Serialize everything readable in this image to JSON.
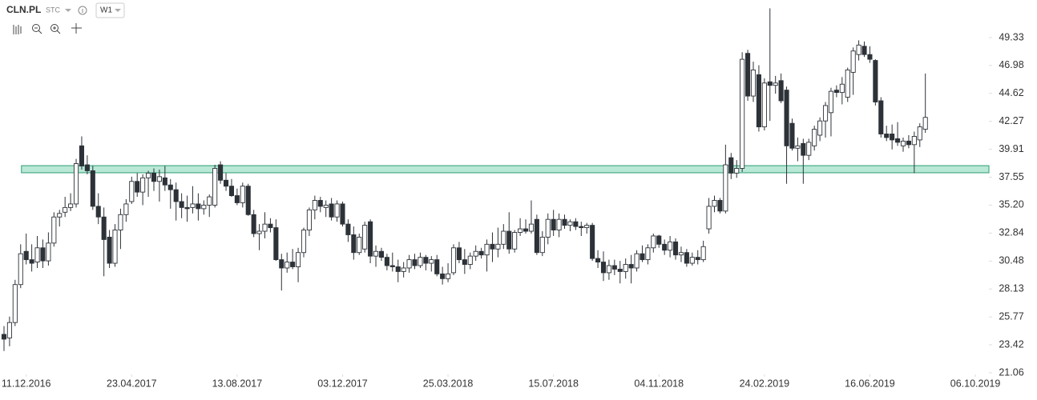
{
  "header": {
    "symbol": "CLN.PL",
    "market": "STC",
    "interval": "W1"
  },
  "chart_data": {
    "type": "candlestick",
    "xlim": [
      -0.72,
      177.45
    ],
    "xticks": [
      {
        "value": 4,
        "label": "11.12.2016"
      },
      {
        "value": 23,
        "label": "23.04.2017"
      },
      {
        "value": 42,
        "label": "13.08.2017"
      },
      {
        "value": 61,
        "label": "03.12.2017"
      },
      {
        "value": 80,
        "label": "25.03.2018"
      },
      {
        "value": 99,
        "label": "15.07.2018"
      },
      {
        "value": 118,
        "label": "04.11.2018"
      },
      {
        "value": 137,
        "label": "24.02.2019"
      },
      {
        "value": 156,
        "label": "16.06.2019"
      },
      {
        "value": 175,
        "label": "06.10.2019"
      }
    ],
    "ylim": [
      21.06,
      52.5
    ],
    "yticks": [
      21.06,
      23.42,
      25.77,
      28.13,
      30.48,
      32.84,
      {
        "value": 35.2,
        "label": "35.20"
      },
      37.55,
      39.91,
      42.27,
      44.62,
      46.98,
      49.33
    ],
    "up_color": "#ffffff",
    "down_color": "#2d3238",
    "zone": {
      "low": 37.93,
      "high": 38.53,
      "color": "#7fd6b4"
    },
    "ohlc": [
      [
        24.3,
        25.0,
        22.9,
        23.9
      ],
      [
        24.0,
        25.8,
        23.3,
        25.3
      ],
      [
        25.3,
        28.9,
        25.0,
        28.5
      ],
      [
        28.5,
        31.9,
        28.2,
        31.1
      ],
      [
        31.3,
        32.8,
        30.2,
        30.6
      ],
      [
        30.6,
        31.9,
        29.6,
        30.3
      ],
      [
        30.4,
        32.6,
        29.9,
        31.6
      ],
      [
        31.6,
        32.3,
        29.9,
        30.5
      ],
      [
        30.5,
        32.9,
        30.1,
        32.0
      ],
      [
        32.0,
        34.6,
        31.7,
        34.2
      ],
      [
        34.2,
        34.8,
        33.4,
        34.5
      ],
      [
        34.6,
        35.9,
        34.2,
        35.0
      ],
      [
        35.0,
        36.2,
        34.7,
        35.3
      ],
      [
        35.3,
        39.1,
        35.0,
        38.7
      ],
      [
        40.2,
        41.0,
        38.2,
        38.5
      ],
      [
        38.6,
        39.4,
        37.8,
        38.1
      ],
      [
        38.1,
        38.5,
        34.8,
        35.1
      ],
      [
        35.1,
        36.2,
        33.6,
        34.2
      ],
      [
        34.2,
        35.0,
        29.2,
        32.3
      ],
      [
        32.5,
        33.1,
        29.9,
        30.3
      ],
      [
        30.3,
        33.6,
        30.0,
        33.1
      ],
      [
        33.1,
        34.9,
        31.5,
        34.4
      ],
      [
        34.4,
        35.7,
        33.8,
        35.3
      ],
      [
        35.5,
        37.6,
        35.3,
        37.2
      ],
      [
        37.2,
        37.9,
        35.9,
        36.3
      ],
      [
        36.3,
        37.8,
        35.2,
        37.5
      ],
      [
        37.5,
        38.1,
        35.9,
        37.9
      ],
      [
        37.9,
        38.3,
        36.4,
        37.2
      ],
      [
        37.2,
        38.2,
        35.5,
        37.6
      ],
      [
        37.5,
        38.5,
        36.4,
        36.9
      ],
      [
        36.9,
        37.4,
        34.9,
        36.5
      ],
      [
        36.5,
        37.1,
        33.9,
        35.5
      ],
      [
        35.5,
        36.2,
        34.1,
        35.0
      ],
      [
        35.0,
        36.0,
        33.8,
        34.9
      ],
      [
        35.0,
        36.8,
        34.5,
        35.3
      ],
      [
        35.3,
        36.2,
        33.9,
        34.9
      ],
      [
        34.9,
        35.6,
        34.4,
        35.2
      ],
      [
        35.2,
        36.1,
        34.2,
        35.9
      ],
      [
        35.2,
        38.6,
        35.0,
        38.3
      ],
      [
        38.6,
        38.9,
        37.0,
        37.3
      ],
      [
        37.3,
        37.9,
        36.4,
        36.8
      ],
      [
        36.8,
        37.4,
        35.9,
        36.0
      ],
      [
        36.0,
        36.6,
        35.2,
        35.4
      ],
      [
        35.4,
        37.1,
        35.0,
        36.8
      ],
      [
        36.8,
        37.0,
        34.3,
        34.4
      ],
      [
        34.4,
        34.8,
        32.5,
        32.8
      ],
      [
        32.8,
        33.6,
        31.4,
        33.0
      ],
      [
        33.0,
        34.6,
        32.4,
        33.6
      ],
      [
        33.6,
        34.1,
        32.9,
        33.3
      ],
      [
        33.3,
        34.0,
        30.5,
        30.6
      ],
      [
        30.6,
        31.1,
        28.0,
        29.9
      ],
      [
        29.9,
        31.2,
        29.5,
        30.4
      ],
      [
        30.4,
        31.5,
        29.8,
        30.0
      ],
      [
        30.0,
        31.6,
        28.7,
        31.2
      ],
      [
        31.2,
        33.3,
        30.8,
        33.1
      ],
      [
        33.1,
        35.0,
        32.6,
        34.8
      ],
      [
        34.8,
        36.0,
        34.0,
        35.6
      ],
      [
        35.6,
        35.9,
        34.6,
        35.1
      ],
      [
        35.0,
        35.6,
        34.2,
        35.2
      ],
      [
        35.3,
        35.8,
        33.9,
        34.2
      ],
      [
        34.2,
        35.6,
        33.8,
        35.3
      ],
      [
        35.3,
        35.5,
        33.4,
        33.6
      ],
      [
        33.6,
        34.0,
        32.1,
        32.7
      ],
      [
        32.7,
        33.4,
        30.6,
        31.2
      ],
      [
        31.2,
        32.8,
        31.0,
        32.5
      ],
      [
        31.5,
        33.8,
        31.2,
        33.5
      ],
      [
        33.8,
        34.0,
        30.3,
        30.9
      ],
      [
        30.9,
        31.8,
        30.0,
        31.3
      ],
      [
        31.3,
        31.6,
        30.5,
        30.8
      ],
      [
        30.8,
        31.1,
        29.7,
        30.1
      ],
      [
        30.1,
        31.2,
        29.6,
        30.0
      ],
      [
        30.0,
        30.6,
        28.7,
        29.6
      ],
      [
        29.6,
        30.4,
        29.1,
        29.9
      ],
      [
        29.9,
        31.0,
        29.5,
        30.6
      ],
      [
        30.6,
        31.1,
        29.8,
        30.1
      ],
      [
        30.1,
        31.2,
        29.9,
        30.8
      ],
      [
        30.8,
        31.0,
        29.7,
        30.3
      ],
      [
        30.3,
        30.9,
        29.6,
        30.6
      ],
      [
        30.6,
        31.0,
        29.2,
        29.4
      ],
      [
        29.4,
        30.0,
        28.5,
        29.0
      ],
      [
        29.0,
        30.3,
        28.7,
        29.4
      ],
      [
        29.5,
        31.9,
        29.3,
        31.6
      ],
      [
        31.6,
        32.1,
        30.3,
        30.6
      ],
      [
        30.6,
        31.5,
        29.4,
        30.2
      ],
      [
        30.2,
        31.2,
        29.8,
        30.9
      ],
      [
        30.9,
        31.8,
        30.5,
        31.3
      ],
      [
        31.3,
        31.6,
        30.7,
        31.0
      ],
      [
        31.0,
        32.3,
        29.6,
        31.9
      ],
      [
        31.9,
        32.9,
        30.4,
        31.5
      ],
      [
        31.5,
        33.3,
        30.8,
        31.9
      ],
      [
        31.9,
        33.6,
        31.5,
        33.0
      ],
      [
        33.0,
        34.6,
        31.1,
        31.5
      ],
      [
        31.5,
        33.1,
        31.2,
        32.9
      ],
      [
        32.9,
        34.1,
        32.6,
        33.2
      ],
      [
        33.2,
        34.0,
        32.8,
        33.0
      ],
      [
        33.0,
        35.6,
        32.8,
        33.6
      ],
      [
        34.0,
        34.4,
        31.0,
        31.2
      ],
      [
        31.2,
        33.0,
        30.9,
        32.5
      ],
      [
        32.5,
        34.5,
        31.9,
        34.0
      ],
      [
        34.0,
        34.8,
        32.6,
        33.1
      ],
      [
        33.1,
        34.5,
        32.5,
        34.0
      ],
      [
        34.0,
        34.4,
        33.2,
        33.5
      ],
      [
        33.5,
        34.0,
        33.0,
        33.8
      ],
      [
        33.8,
        34.1,
        33.1,
        33.4
      ],
      [
        33.4,
        33.8,
        32.6,
        33.3
      ],
      [
        33.3,
        33.7,
        32.8,
        33.5
      ],
      [
        33.5,
        33.7,
        30.5,
        30.7
      ],
      [
        30.7,
        31.4,
        29.9,
        30.4
      ],
      [
        30.4,
        31.3,
        28.8,
        29.5
      ],
      [
        29.5,
        30.6,
        28.9,
        30.1
      ],
      [
        30.1,
        30.6,
        29.3,
        29.8
      ],
      [
        29.8,
        30.5,
        28.6,
        29.6
      ],
      [
        29.6,
        30.7,
        29.0,
        30.2
      ],
      [
        30.2,
        31.0,
        28.6,
        29.9
      ],
      [
        29.9,
        31.4,
        29.6,
        31.1
      ],
      [
        31.1,
        31.8,
        30.4,
        30.6
      ],
      [
        30.6,
        31.9,
        30.2,
        31.6
      ],
      [
        31.6,
        32.8,
        31.2,
        32.6
      ],
      [
        32.6,
        32.7,
        31.6,
        31.9
      ],
      [
        31.9,
        32.3,
        31.0,
        31.4
      ],
      [
        31.4,
        32.6,
        30.8,
        32.1
      ],
      [
        32.1,
        32.4,
        30.6,
        31.0
      ],
      [
        31.0,
        31.7,
        30.4,
        31.2
      ],
      [
        31.2,
        31.5,
        30.0,
        30.3
      ],
      [
        30.3,
        31.2,
        30.1,
        30.8
      ],
      [
        30.8,
        31.4,
        30.2,
        30.6
      ],
      [
        30.6,
        32.2,
        30.4,
        31.7
      ],
      [
        33.2,
        35.8,
        32.8,
        35.1
      ],
      [
        35.1,
        36.0,
        34.6,
        35.6
      ],
      [
        35.6,
        35.8,
        34.5,
        34.7
      ],
      [
        34.7,
        40.3,
        34.5,
        38.6
      ],
      [
        39.2,
        39.6,
        37.4,
        37.9
      ],
      [
        37.9,
        39.0,
        37.5,
        38.3
      ],
      [
        38.3,
        48.1,
        38.0,
        47.5
      ],
      [
        48.0,
        48.3,
        44.0,
        44.4
      ],
      [
        44.4,
        47.3,
        43.9,
        46.6
      ],
      [
        46.2,
        47.0,
        41.4,
        41.8
      ],
      [
        41.8,
        45.9,
        41.5,
        45.5
      ],
      [
        45.6,
        51.8,
        42.3,
        45.3
      ],
      [
        45.3,
        46.1,
        44.6,
        45.5
      ],
      [
        45.7,
        46.3,
        43.8,
        44.0
      ],
      [
        44.9,
        45.2,
        37.0,
        40.2
      ],
      [
        42.1,
        42.5,
        39.8,
        40.0
      ],
      [
        40.0,
        40.9,
        38.9,
        40.2
      ],
      [
        40.4,
        40.8,
        37.0,
        39.4
      ],
      [
        39.4,
        40.8,
        39.0,
        40.5
      ],
      [
        40.2,
        41.9,
        39.8,
        41.6
      ],
      [
        41.1,
        42.6,
        40.6,
        42.3
      ],
      [
        42.3,
        43.9,
        40.9,
        43.6
      ],
      [
        43.0,
        45.1,
        41.0,
        44.8
      ],
      [
        44.9,
        45.3,
        44.3,
        44.7
      ],
      [
        44.7,
        46.0,
        43.7,
        45.4
      ],
      [
        44.3,
        46.8,
        43.9,
        46.6
      ],
      [
        46.4,
        48.5,
        44.5,
        48.2
      ],
      [
        47.9,
        49.1,
        47.4,
        48.7
      ],
      [
        48.6,
        49.0,
        47.7,
        47.9
      ],
      [
        47.9,
        48.6,
        47.2,
        47.5
      ],
      [
        47.4,
        47.5,
        43.6,
        43.9
      ],
      [
        44.0,
        44.3,
        40.9,
        41.2
      ],
      [
        41.2,
        41.9,
        40.6,
        40.9
      ],
      [
        41.2,
        42.0,
        39.9,
        40.7
      ],
      [
        40.8,
        42.2,
        40.2,
        40.5
      ],
      [
        40.2,
        40.9,
        39.7,
        40.6
      ],
      [
        40.6,
        41.1,
        40.0,
        40.3
      ],
      [
        40.3,
        41.4,
        37.9,
        41.0
      ],
      [
        40.7,
        42.1,
        40.1,
        41.8
      ],
      [
        41.6,
        46.3,
        41.3,
        42.6
      ]
    ]
  }
}
